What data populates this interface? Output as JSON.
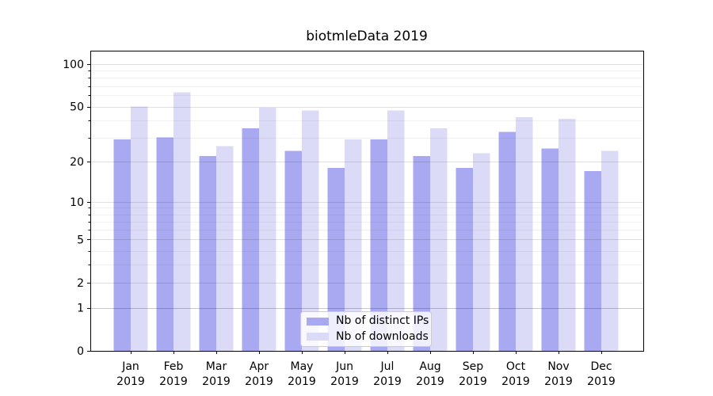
{
  "title": "biotmleData 2019",
  "chart_data": {
    "type": "bar",
    "title": "biotmleData 2019",
    "categories": [
      "Jan",
      "Feb",
      "Mar",
      "Apr",
      "May",
      "Jun",
      "Jul",
      "Aug",
      "Sep",
      "Oct",
      "Nov",
      "Dec"
    ],
    "category_year": "2019",
    "series": [
      {
        "name": "Nb of distinct IPs",
        "color": "#a9a9f2",
        "values": [
          29,
          30,
          22,
          35,
          24,
          18,
          29,
          22,
          18,
          33,
          25,
          17
        ]
      },
      {
        "name": "Nb of downloads",
        "color": "#dbdbf8",
        "values": [
          50,
          63,
          26,
          49,
          47,
          29,
          47,
          35,
          23,
          42,
          41,
          24
        ]
      }
    ],
    "yscale": "log1p",
    "ylim": [
      0,
      124
    ],
    "y_major_ticks": [
      0,
      1,
      2,
      5,
      10,
      20,
      50,
      100
    ],
    "y_minor_ticks": [
      3,
      4,
      6,
      7,
      8,
      9,
      30,
      40,
      60,
      70,
      80,
      90
    ],
    "grid": "horizontal",
    "legend_position": "lower center",
    "xlabel": "",
    "ylabel": ""
  },
  "colors": {
    "spine": "#000000",
    "grid_major": "rgba(0,0,0,0.12)",
    "grid_emphasis": "rgba(0,0,0,0.22)",
    "grid_minor": "rgba(0,0,0,0.05)",
    "tick": "#000000",
    "background": "#ffffff"
  }
}
